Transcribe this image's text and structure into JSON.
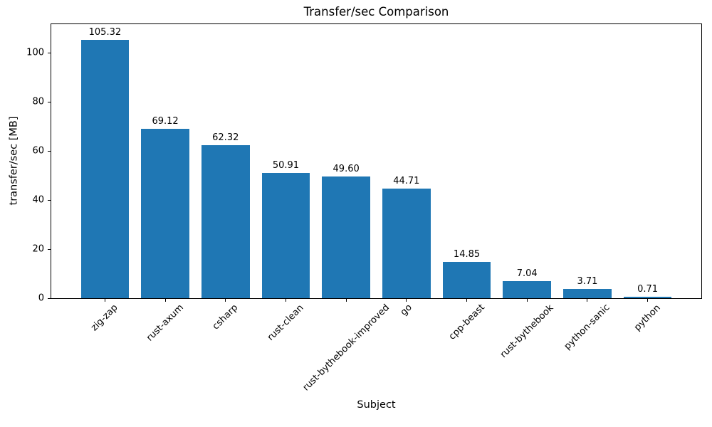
{
  "chart_data": {
    "type": "bar",
    "title": "Transfer/sec Comparison",
    "xlabel": "Subject",
    "ylabel": "transfer/sec [MB]",
    "categories": [
      "zig-zap",
      "rust-axum",
      "csharp",
      "rust-clean",
      "rust-bythebook-improved",
      "go",
      "cpp-beast",
      "rust-bythebook",
      "python-sanic",
      "python"
    ],
    "values": [
      105.32,
      69.12,
      62.32,
      50.91,
      49.6,
      44.71,
      14.85,
      7.04,
      3.71,
      0.71
    ],
    "bar_labels": [
      "105.32",
      "69.12",
      "62.32",
      "50.91",
      "49.60",
      "44.71",
      "14.85",
      "7.04",
      "3.71",
      "0.71"
    ],
    "yticks": [
      0,
      20,
      40,
      60,
      80,
      100
    ],
    "ytick_labels": [
      "0",
      "20",
      "40",
      "60",
      "80",
      "100"
    ],
    "ylim": [
      0,
      111.6
    ],
    "xlim": [
      -0.89,
      9.89
    ],
    "bar_width": 0.8,
    "bar_color": "#1f77b4",
    "text_color": "#000000",
    "background_color": "#ffffff",
    "grid": false,
    "legend": null,
    "x_tick_label_rotation_deg": 45
  }
}
